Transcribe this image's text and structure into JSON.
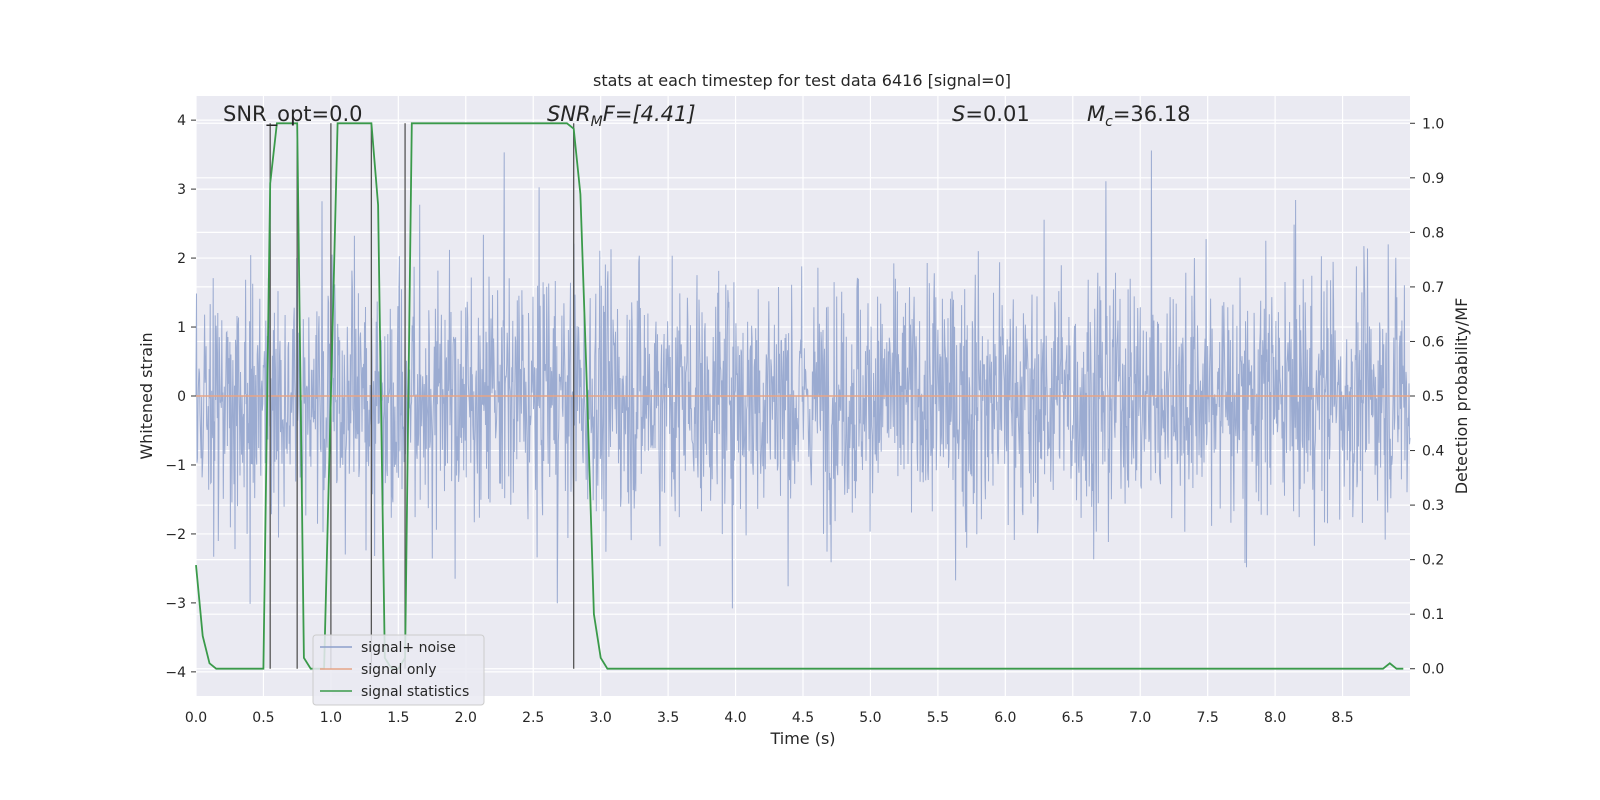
{
  "chart_data": {
    "type": "line",
    "title": "stats at each timestep for test data 6416 [signal=0]",
    "xlabel": "Time (s)",
    "ylabel_left": "Whitened strain",
    "ylabel_right": "Detection probability/MF",
    "xlim": [
      0.0,
      9.0
    ],
    "ylim_left": [
      -4.35,
      4.35
    ],
    "ylim_right": [
      -0.05,
      1.05
    ],
    "x_ticks": [
      0.0,
      0.5,
      1.0,
      1.5,
      2.0,
      2.5,
      3.0,
      3.5,
      4.0,
      4.5,
      5.0,
      5.5,
      6.0,
      6.5,
      7.0,
      7.5,
      8.0,
      8.5
    ],
    "x_tick_labels": [
      "0.0",
      "0.5",
      "1.0",
      "1.5",
      "2.0",
      "2.5",
      "3.0",
      "3.5",
      "4.0",
      "4.5",
      "5.0",
      "5.5",
      "6.0",
      "6.5",
      "7.0",
      "7.5",
      "8.0",
      "8.5"
    ],
    "y_left_ticks": [
      4,
      3,
      2,
      1,
      0,
      -1,
      -2,
      -3,
      -4
    ],
    "y_left_tick_labels": [
      "4",
      "3",
      "2",
      "1",
      "0",
      "−1",
      "−2",
      "−3",
      "−4"
    ],
    "y_right_ticks": [
      1.0,
      0.9,
      0.8,
      0.7,
      0.6,
      0.5,
      0.4,
      0.3,
      0.2,
      0.1,
      0.0
    ],
    "y_right_tick_labels": [
      "1.0",
      "0.9",
      "0.8",
      "0.7",
      "0.6",
      "0.5",
      "0.4",
      "0.3",
      "0.2",
      "0.1",
      "0.0"
    ],
    "grid": true,
    "legend_position": "lower-left",
    "annotations": {
      "snr_opt": "SNR_opt=0.0",
      "snr_mf_base": "SNR",
      "snr_mf_sub": "M",
      "snr_mf_rest": "F=[4.41]",
      "s_sym": "S",
      "s_val": "=0.01",
      "mc_sym": "M",
      "mc_sub": "c",
      "mc_val": "=36.18"
    },
    "series": [
      {
        "name": "signal+ noise",
        "axis": "left",
        "color": "#8da0cb",
        "style": "dense noise",
        "amplitude_envelope": [
          -3.8,
          4.0
        ]
      },
      {
        "name": "signal only",
        "axis": "left",
        "color": "#e5a486",
        "x": [
          0.0,
          9.0
        ],
        "y": [
          0.0,
          0.0
        ]
      },
      {
        "name": "signal statistics",
        "axis": "right",
        "color": "#3a9a4a",
        "x": [
          0.0,
          0.05,
          0.1,
          0.15,
          0.5,
          0.55,
          0.6,
          0.65,
          0.7,
          0.75,
          0.8,
          0.85,
          0.95,
          1.0,
          1.05,
          1.1,
          1.3,
          1.35,
          1.4,
          1.45,
          1.5,
          1.55,
          1.6,
          1.65,
          2.75,
          2.8,
          2.85,
          2.9,
          2.95,
          3.0,
          3.05,
          3.1,
          8.75,
          8.8,
          8.85,
          8.9,
          8.95
        ],
        "y": [
          0.19,
          0.06,
          0.01,
          0.0,
          0.0,
          0.89,
          1.0,
          1.0,
          1.0,
          1.0,
          0.02,
          0.0,
          0.0,
          0.5,
          1.0,
          1.0,
          1.0,
          0.85,
          0.02,
          0.0,
          0.0,
          0.02,
          1.0,
          1.0,
          1.0,
          0.99,
          0.87,
          0.5,
          0.1,
          0.02,
          0.0,
          0.0,
          0.0,
          0.0,
          0.01,
          0.0,
          0.0
        ]
      }
    ],
    "marker_lines": {
      "color": "#555555",
      "x": [
        0.55,
        0.75,
        1.0,
        1.3,
        1.55,
        2.8
      ]
    }
  }
}
